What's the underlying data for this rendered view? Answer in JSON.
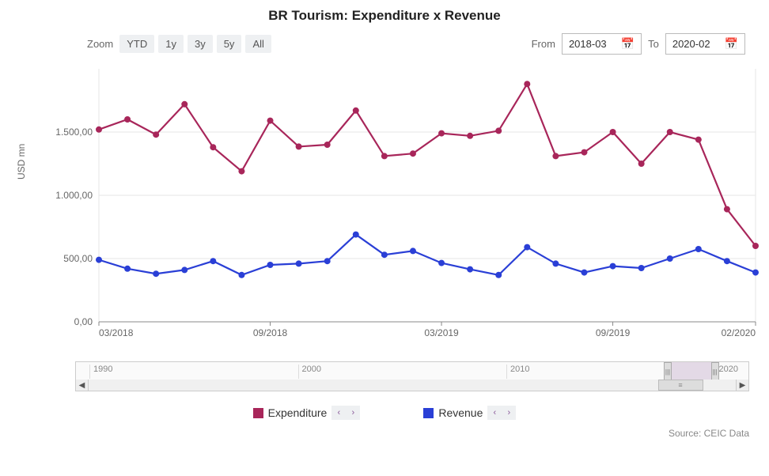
{
  "title": "BR Tourism: Expenditure x Revenue",
  "zoom": {
    "label": "Zoom",
    "buttons": [
      "YTD",
      "1y",
      "3y",
      "5y",
      "All"
    ]
  },
  "range": {
    "from_label": "From",
    "to_label": "To",
    "from_value": "2018-03",
    "to_value": "2020-02"
  },
  "chart": {
    "type": "line",
    "y_label": "USD mn",
    "y_ticks": [
      0,
      500,
      1000,
      1500
    ],
    "y_tick_labels": [
      "0,00",
      "500,00",
      "1.000,00",
      "1.500,00"
    ],
    "ylim": [
      0,
      2000
    ],
    "x_tick_indices": [
      0,
      6,
      12,
      18,
      23
    ],
    "x_tick_labels": [
      "03/2018",
      "09/2018",
      "03/2019",
      "09/2019",
      "02/2020"
    ],
    "n_points": 24,
    "series": [
      {
        "name": "Expenditure",
        "color": "#a8265a",
        "values": [
          1520,
          1600,
          1480,
          1720,
          1380,
          1190,
          1590,
          1385,
          1400,
          1670,
          1310,
          1330,
          1490,
          1470,
          1510,
          1880,
          1310,
          1340,
          1500,
          1250,
          1500,
          1440,
          890,
          600
        ]
      },
      {
        "name": "Revenue",
        "color": "#2a3fd6",
        "values": [
          490,
          420,
          380,
          410,
          480,
          370,
          450,
          460,
          480,
          690,
          530,
          560,
          465,
          415,
          370,
          590,
          460,
          390,
          440,
          425,
          500,
          575,
          480,
          390
        ]
      }
    ],
    "grid_color": "#e6e6e6",
    "axis_color": "#888888",
    "background_color": "#ffffff",
    "line_width": 2.2,
    "marker_radius": 4,
    "label_fontsize": 12,
    "tick_fontsize": 12
  },
  "navigator": {
    "ticks": [
      {
        "label": "1990",
        "pos_pct": 2
      },
      {
        "label": "2000",
        "pos_pct": 33
      },
      {
        "label": "2010",
        "pos_pct": 64
      },
      {
        "label": "2020",
        "pos_pct": 95
      }
    ],
    "selection": {
      "left_pct": 88,
      "width_pct": 7
    }
  },
  "legend": {
    "items": [
      {
        "label": "Expenditure",
        "color": "#a8265a"
      },
      {
        "label": "Revenue",
        "color": "#2a3fd6"
      }
    ]
  },
  "source": "Source: CEIC Data"
}
